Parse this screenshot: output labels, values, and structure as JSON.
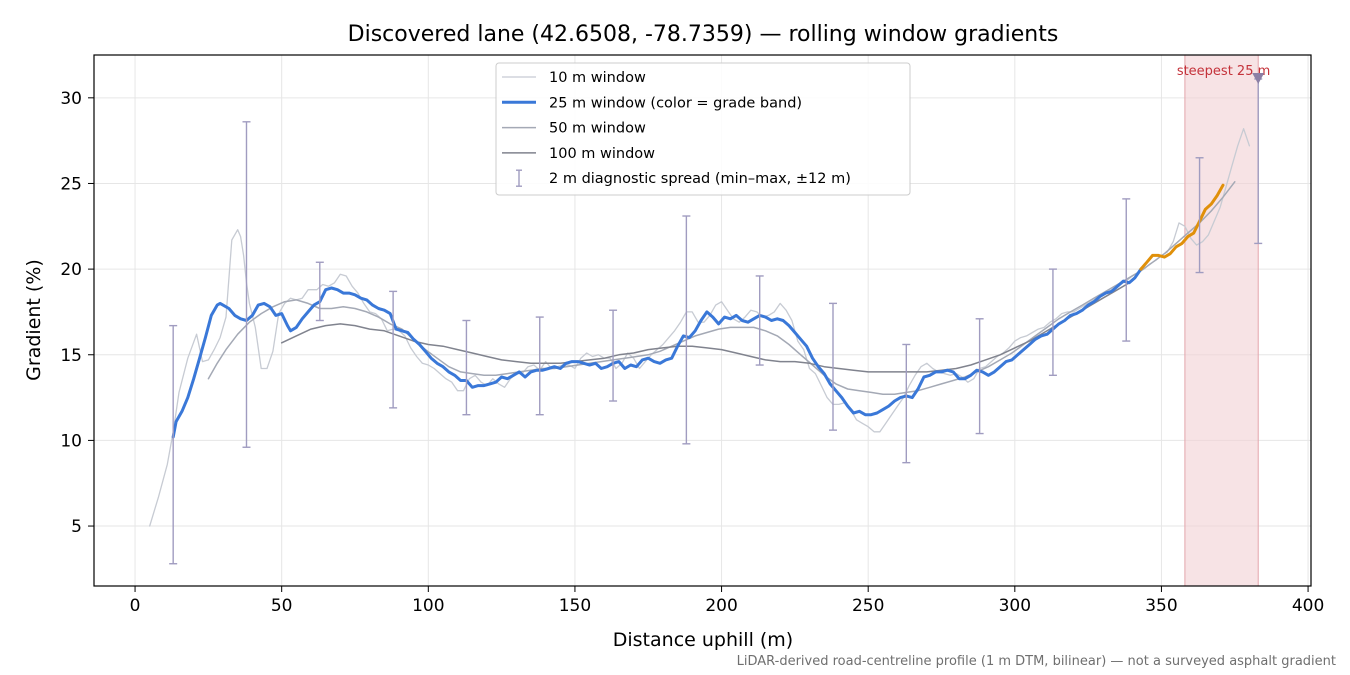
{
  "chart_data": {
    "type": "line",
    "title": "Discovered lane (42.6508, -78.7359) — rolling window gradients",
    "xlabel": "Distance uphill (m)",
    "ylabel": "Gradient (%)",
    "xlim": [
      -14,
      401
    ],
    "ylim": [
      1.5,
      32.5
    ],
    "xticks": [
      0,
      50,
      100,
      150,
      200,
      250,
      300,
      350,
      400
    ],
    "yticks": [
      5,
      10,
      15,
      20,
      25,
      30
    ],
    "grid": true,
    "legend_position": "top-center",
    "footnote": "LiDAR-derived road-centreline profile (1 m DTM, bilinear) — not a surveyed asphalt gradient",
    "colors": {
      "w10": "#c7cbd3",
      "w25": "#3a78d8",
      "w25_steep": "#e0900a",
      "w50": "#a4a9b5",
      "w100": "#80838e",
      "errorbar": "#a09cc0",
      "highlight_fill": "#f2d0d3",
      "highlight_label": "#c4323a",
      "marker": "#8b7fa5"
    },
    "legend": [
      {
        "key": "w10",
        "label": "10 m window"
      },
      {
        "key": "w25",
        "label": "25 m window (color = grade band)"
      },
      {
        "key": "w50",
        "label": "50 m window"
      },
      {
        "key": "w100",
        "label": "100 m window"
      },
      {
        "key": "err",
        "label": "2 m diagnostic spread (min–max, ±12 m)"
      }
    ],
    "highlight": {
      "x_range": [
        358,
        383
      ],
      "label": "steepest 25 m",
      "marker": {
        "x": 383,
        "y": 31.1
      }
    },
    "series": [
      {
        "name": "10 m window",
        "x": [
          5,
          8,
          11,
          13,
          15,
          18,
          21,
          23,
          25,
          27,
          29,
          31,
          33,
          35,
          36,
          37,
          38,
          39,
          41,
          43,
          45,
          47,
          49,
          51,
          53,
          55,
          57,
          59,
          62,
          64,
          66,
          68,
          70,
          72,
          74,
          76,
          78,
          80,
          82,
          84,
          86,
          88,
          90,
          92,
          94,
          96,
          98,
          100,
          102,
          104,
          106,
          108,
          110,
          112,
          114,
          116,
          118,
          120,
          122,
          124,
          126,
          128,
          130,
          132,
          134,
          136,
          138,
          140,
          142,
          144,
          146,
          148,
          150,
          152,
          154,
          156,
          158,
          160,
          162,
          164,
          166,
          168,
          170,
          172,
          174,
          176,
          178,
          180,
          182,
          184,
          186,
          188,
          190,
          192,
          194,
          196,
          198,
          200,
          202,
          204,
          206,
          208,
          210,
          212,
          214,
          216,
          218,
          220,
          222,
          224,
          226,
          228,
          230,
          232,
          234,
          236,
          238,
          240,
          242,
          244,
          246,
          248,
          250,
          252,
          254,
          256,
          258,
          260,
          262,
          264,
          266,
          268,
          270,
          272,
          274,
          276,
          278,
          280,
          282,
          284,
          286,
          288,
          290,
          292,
          294,
          296,
          298,
          300,
          302,
          304,
          306,
          308,
          310,
          312,
          314,
          316,
          318,
          320,
          322,
          324,
          326,
          328,
          330,
          332,
          334,
          336,
          338,
          340,
          342,
          344,
          346,
          348,
          350,
          352,
          354,
          356,
          358,
          360,
          362,
          364,
          366,
          368,
          370,
          372,
          374,
          376,
          378,
          380
        ],
        "y": [
          5.0,
          6.7,
          8.6,
          10.5,
          12.8,
          14.8,
          16.2,
          14.6,
          14.7,
          15.3,
          16.0,
          17.2,
          21.7,
          22.3,
          21.9,
          20.8,
          19.2,
          18.0,
          16.6,
          14.2,
          14.2,
          15.2,
          17.4,
          18.0,
          18.3,
          18.2,
          18.3,
          18.8,
          18.8,
          19.1,
          19.0,
          19.2,
          19.7,
          19.6,
          19.0,
          18.6,
          18.0,
          17.5,
          17.4,
          17.1,
          16.4,
          16.5,
          16.4,
          16.1,
          15.4,
          14.9,
          14.5,
          14.4,
          14.2,
          13.9,
          13.6,
          13.4,
          12.9,
          12.9,
          13.6,
          13.8,
          13.4,
          13.2,
          13.6,
          13.3,
          13.1,
          13.6,
          13.9,
          13.9,
          14.3,
          14.4,
          14.1,
          14.6,
          14.2,
          14.3,
          14.4,
          14.4,
          14.2,
          14.8,
          15.1,
          14.9,
          15.0,
          14.8,
          14.8,
          14.2,
          14.5,
          15.1,
          14.8,
          14.2,
          14.6,
          15.0,
          15.3,
          15.6,
          16.0,
          16.4,
          16.9,
          17.5,
          17.5,
          16.9,
          16.9,
          17.3,
          17.9,
          18.1,
          17.6,
          17.1,
          16.9,
          17.2,
          17.6,
          17.5,
          17.2,
          17.3,
          17.5,
          18.0,
          17.6,
          17.0,
          15.8,
          15.3,
          14.2,
          13.9,
          13.2,
          12.5,
          12.1,
          12.1,
          12.2,
          11.8,
          11.2,
          11.0,
          10.8,
          10.5,
          10.5,
          11.0,
          11.5,
          12.0,
          12.5,
          13.2,
          13.8,
          14.3,
          14.5,
          14.2,
          14.0,
          13.9,
          13.8,
          13.9,
          13.7,
          13.4,
          13.6,
          14.2,
          14.3,
          14.6,
          14.9,
          15.1,
          15.4,
          15.8,
          16.0,
          16.1,
          16.3,
          16.5,
          16.6,
          16.9,
          17.1,
          17.4,
          17.5,
          17.5,
          17.7,
          17.9,
          18.1,
          18.3,
          18.5,
          18.7,
          18.9,
          19.1,
          19.3,
          19.6,
          19.8,
          20.0,
          20.3,
          20.5,
          20.8,
          21.0,
          21.6,
          22.7,
          22.5,
          21.8,
          21.4,
          21.6,
          22.0,
          22.8,
          23.6,
          24.8,
          26.0,
          27.2,
          28.2,
          27.2
        ]
      },
      {
        "name": "25 m window (color = grade band)",
        "x": [
          13,
          14,
          16,
          18,
          20,
          22,
          24,
          26,
          28,
          29,
          30,
          32,
          34,
          36,
          38,
          40,
          42,
          44,
          46,
          48,
          50,
          52,
          53,
          55,
          57,
          59,
          61,
          63,
          65,
          67,
          69,
          71,
          73,
          75,
          77,
          79,
          81,
          83,
          85,
          87,
          89,
          91,
          93,
          95,
          97,
          99,
          101,
          103,
          105,
          107,
          109,
          111,
          113,
          115,
          117,
          119,
          121,
          123,
          125,
          127,
          129,
          131,
          133,
          135,
          137,
          139,
          141,
          143,
          145,
          147,
          149,
          151,
          153,
          155,
          157,
          159,
          161,
          163,
          165,
          167,
          169,
          171,
          173,
          175,
          177,
          179,
          181,
          183,
          185,
          187,
          189,
          191,
          193,
          195,
          197,
          199,
          201,
          203,
          205,
          207,
          209,
          211,
          213,
          215,
          217,
          219,
          221,
          223,
          225,
          227,
          229,
          231,
          233,
          235,
          237,
          239,
          241,
          243,
          245,
          247,
          249,
          251,
          253,
          255,
          257,
          259,
          261,
          263,
          265,
          267,
          269,
          271,
          273,
          275,
          277,
          279,
          281,
          283,
          285,
          287,
          289,
          291,
          293,
          295,
          297,
          299,
          301,
          303,
          305,
          307,
          309,
          311,
          313,
          315,
          317,
          319,
          321,
          323,
          325,
          327,
          329,
          331,
          333,
          335,
          337,
          339,
          341,
          343
        ],
        "y": [
          10.2,
          11.1,
          11.7,
          12.5,
          13.6,
          14.8,
          16.0,
          17.3,
          17.9,
          18.0,
          17.9,
          17.7,
          17.3,
          17.1,
          17.0,
          17.3,
          17.9,
          18.0,
          17.8,
          17.3,
          17.4,
          16.7,
          16.4,
          16.6,
          17.1,
          17.5,
          17.9,
          18.1,
          18.8,
          18.9,
          18.8,
          18.6,
          18.6,
          18.5,
          18.3,
          18.2,
          17.9,
          17.7,
          17.6,
          17.4,
          16.5,
          16.4,
          16.3,
          15.9,
          15.6,
          15.2,
          14.8,
          14.5,
          14.3,
          14.0,
          13.8,
          13.5,
          13.5,
          13.1,
          13.2,
          13.2,
          13.3,
          13.4,
          13.7,
          13.6,
          13.8,
          14.0,
          13.7,
          14.0,
          14.1,
          14.1,
          14.2,
          14.3,
          14.2,
          14.5,
          14.6,
          14.6,
          14.5,
          14.4,
          14.5,
          14.2,
          14.3,
          14.5,
          14.6,
          14.2,
          14.4,
          14.3,
          14.7,
          14.8,
          14.6,
          14.5,
          14.7,
          14.8,
          15.5,
          16.1,
          16.0,
          16.4,
          17.0,
          17.5,
          17.2,
          16.8,
          17.2,
          17.1,
          17.3,
          17.0,
          16.9,
          17.1,
          17.3,
          17.2,
          17.0,
          17.1,
          17.0,
          16.7,
          16.3,
          15.9,
          15.5,
          14.8,
          14.3,
          13.9,
          13.3,
          12.9,
          12.5,
          12.0,
          11.6,
          11.7,
          11.5,
          11.5,
          11.6,
          11.8,
          12.0,
          12.3,
          12.5,
          12.6,
          12.5,
          13.0,
          13.7,
          13.8,
          14.0,
          14.0,
          14.1,
          14.0,
          13.6,
          13.6,
          13.8,
          14.1,
          14.0,
          13.8,
          14.0,
          14.3,
          14.6,
          14.7,
          15.0,
          15.3,
          15.6,
          15.9,
          16.1,
          16.2,
          16.5,
          16.8,
          17.0,
          17.3,
          17.4,
          17.6,
          17.9,
          18.1,
          18.4,
          18.6,
          18.7,
          19.0,
          19.3,
          19.2,
          19.5,
          20.0
        ]
      },
      {
        "name": "25 m window — steep band",
        "x": [
          343,
          345,
          347,
          349,
          351,
          353,
          355,
          357,
          359,
          361,
          363,
          365,
          367,
          369,
          371
        ],
        "y": [
          20.0,
          20.4,
          20.8,
          20.8,
          20.7,
          20.9,
          21.3,
          21.5,
          21.9,
          22.1,
          22.8,
          23.5,
          23.8,
          24.3,
          24.9
        ]
      },
      {
        "name": "50 m window",
        "x": [
          25,
          28,
          31,
          35,
          39,
          43,
          47,
          51,
          55,
          59,
          63,
          67,
          71,
          75,
          79,
          83,
          87,
          91,
          95,
          99,
          103,
          107,
          111,
          115,
          119,
          123,
          127,
          131,
          135,
          139,
          143,
          147,
          151,
          155,
          159,
          163,
          167,
          171,
          175,
          179,
          183,
          187,
          191,
          195,
          199,
          203,
          207,
          211,
          215,
          219,
          223,
          227,
          231,
          235,
          239,
          243,
          247,
          251,
          255,
          259,
          263,
          267,
          271,
          275,
          279,
          283,
          287,
          291,
          295,
          299,
          303,
          307,
          311,
          315,
          319,
          323,
          327,
          331,
          335,
          339,
          343,
          347,
          351,
          355,
          359,
          363,
          367,
          371,
          375
        ],
        "y": [
          13.6,
          14.5,
          15.3,
          16.2,
          16.9,
          17.4,
          17.8,
          18.1,
          18.2,
          18.0,
          17.7,
          17.7,
          17.8,
          17.7,
          17.5,
          17.2,
          16.8,
          16.5,
          15.9,
          15.3,
          14.8,
          14.3,
          14.0,
          13.9,
          13.8,
          13.8,
          13.9,
          14.0,
          14.1,
          14.2,
          14.2,
          14.3,
          14.4,
          14.5,
          14.6,
          14.7,
          14.8,
          14.9,
          15.0,
          15.2,
          15.5,
          15.8,
          16.1,
          16.3,
          16.5,
          16.6,
          16.6,
          16.6,
          16.4,
          16.1,
          15.6,
          15.0,
          14.4,
          13.8,
          13.3,
          13.0,
          12.9,
          12.8,
          12.7,
          12.7,
          12.8,
          12.9,
          13.1,
          13.3,
          13.5,
          13.7,
          14.0,
          14.3,
          14.7,
          15.1,
          15.6,
          16.1,
          16.6,
          17.1,
          17.5,
          17.9,
          18.3,
          18.7,
          19.1,
          19.5,
          19.9,
          20.4,
          20.9,
          21.5,
          22.1,
          22.7,
          23.4,
          24.2,
          25.1
        ]
      },
      {
        "name": "100 m window",
        "x": [
          50,
          55,
          60,
          65,
          70,
          75,
          80,
          85,
          90,
          95,
          100,
          105,
          110,
          115,
          120,
          125,
          130,
          135,
          140,
          145,
          150,
          155,
          160,
          165,
          170,
          175,
          180,
          185,
          190,
          195,
          200,
          205,
          210,
          215,
          220,
          225,
          230,
          235,
          240,
          245,
          250,
          255,
          260,
          265,
          270,
          275,
          280,
          285,
          290,
          295,
          300,
          305,
          310,
          315,
          320,
          325,
          330,
          335,
          340
        ],
        "y": [
          15.7,
          16.1,
          16.5,
          16.7,
          16.8,
          16.7,
          16.5,
          16.4,
          16.1,
          15.8,
          15.6,
          15.5,
          15.3,
          15.1,
          14.9,
          14.7,
          14.6,
          14.5,
          14.5,
          14.5,
          14.6,
          14.7,
          14.8,
          15.0,
          15.1,
          15.3,
          15.4,
          15.5,
          15.5,
          15.4,
          15.3,
          15.1,
          14.9,
          14.7,
          14.6,
          14.6,
          14.5,
          14.3,
          14.2,
          14.1,
          14.0,
          14.0,
          14.0,
          14.0,
          14.0,
          14.1,
          14.2,
          14.4,
          14.7,
          15.0,
          15.4,
          15.8,
          16.3,
          16.8,
          17.3,
          17.8,
          18.3,
          18.8,
          19.3
        ]
      }
    ],
    "error_bars": {
      "x": [
        13,
        38,
        63,
        88,
        113,
        138,
        163,
        188,
        213,
        238,
        263,
        288,
        313,
        338,
        363
      ],
      "low": [
        2.8,
        9.6,
        17.0,
        11.9,
        11.5,
        11.5,
        12.3,
        9.8,
        14.4,
        10.6,
        8.7,
        10.4,
        13.8,
        15.8,
        19.8
      ],
      "high": [
        16.7,
        28.6,
        20.4,
        18.7,
        17.0,
        17.2,
        17.6,
        23.1,
        19.6,
        18.0,
        15.6,
        17.1,
        20.0,
        24.1,
        26.5
      ]
    },
    "steepest_bar": {
      "x": 383,
      "low": 21.5,
      "high": 31.1
    }
  }
}
